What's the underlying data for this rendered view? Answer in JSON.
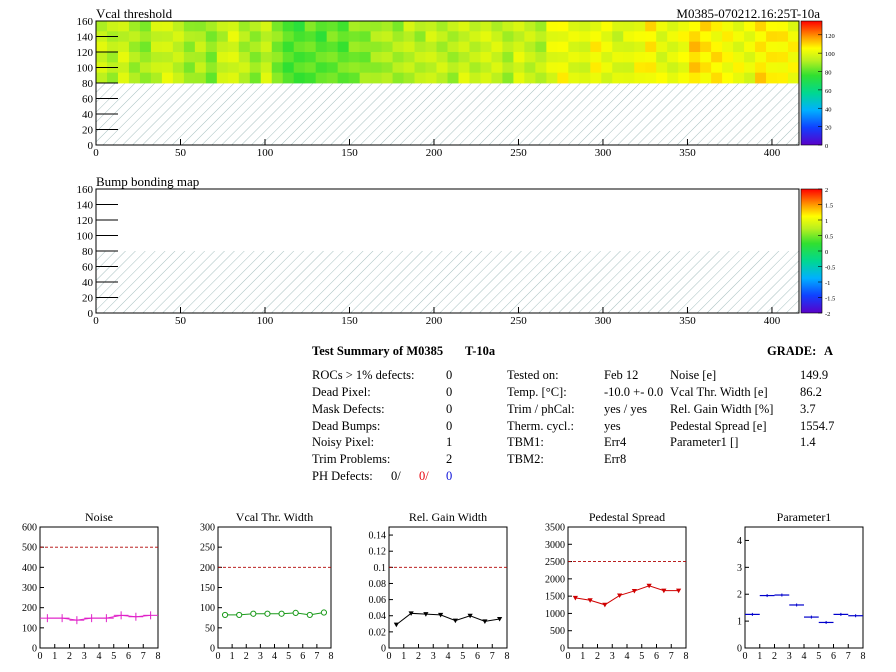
{
  "module_id": "M0385-070212.16:25T-10a",
  "maps": [
    {
      "title": "Vcal threshold",
      "x_ticks": [
        "0",
        "50",
        "100",
        "150",
        "200",
        "250",
        "300",
        "350",
        "400"
      ],
      "y_ticks": [
        "0",
        "20",
        "40",
        "60",
        "80",
        "100",
        "120",
        "140",
        "160"
      ],
      "xlim": [
        0,
        416
      ],
      "ylim": [
        0,
        160
      ],
      "filled_region": {
        "x": [
          0,
          416
        ],
        "y": [
          80,
          160
        ]
      },
      "hatched_region": {
        "x": [
          0,
          416
        ],
        "y": [
          0,
          80
        ]
      },
      "z_ticks": [
        "0",
        "20",
        "40",
        "60",
        "80",
        "100",
        "120"
      ],
      "zlim": [
        0,
        135
      ],
      "column_levels": [
        95,
        92,
        96,
        90,
        88,
        94,
        97,
        93,
        89,
        91,
        86,
        94,
        98,
        92,
        87,
        95,
        84,
        80,
        78,
        82,
        79,
        83,
        81,
        85,
        86,
        88,
        92,
        89,
        94,
        91,
        95,
        93,
        90,
        96,
        92,
        98,
        95,
        91,
        97,
        94,
        92,
        100,
        103,
        98,
        99,
        104,
        101,
        97,
        99,
        103,
        106,
        100,
        98,
        104,
        110,
        108,
        106,
        104,
        102,
        100,
        108,
        105,
        107,
        103
      ],
      "column_defects": [
        0,
        0,
        0,
        0,
        0,
        0,
        0,
        0,
        0,
        0,
        0,
        0,
        0,
        0,
        0,
        0,
        0,
        0,
        0,
        0,
        0,
        0,
        0,
        0,
        0,
        0,
        0,
        0,
        0,
        0,
        0,
        0,
        0,
        0,
        0,
        0,
        0,
        0,
        0,
        0,
        0,
        0,
        0,
        0,
        0,
        0,
        0,
        0,
        0,
        0,
        0,
        0,
        0,
        0,
        0,
        0,
        0,
        0,
        0,
        0,
        0,
        0,
        0,
        0
      ]
    },
    {
      "title": "Bump bonding map",
      "x_ticks": [
        "0",
        "50",
        "100",
        "150",
        "200",
        "250",
        "300",
        "350",
        "400"
      ],
      "y_ticks": [
        "0",
        "20",
        "40",
        "60",
        "80",
        "100",
        "120",
        "140",
        "160"
      ],
      "xlim": [
        0,
        416
      ],
      "ylim": [
        0,
        160
      ],
      "hatched_region": {
        "x": [
          0,
          416
        ],
        "y": [
          0,
          80
        ]
      },
      "z_ticks": [
        "-2",
        "-1.5",
        "-1",
        "-0.5",
        "0",
        "0.5",
        "1",
        "1.5",
        "2"
      ],
      "zlim": [
        -2,
        2
      ]
    }
  ],
  "summary": {
    "title": "Test Summary of M0385",
    "temp_tag": "T-10a",
    "grade_label": "GRADE:",
    "grade": "A",
    "defects": [
      {
        "label": "ROCs > 1% defects:",
        "value": "0"
      },
      {
        "label": "Dead Pixel:",
        "value": "0"
      },
      {
        "label": "Mask Defects:",
        "value": "0"
      },
      {
        "label": "Dead Bumps:",
        "value": "0"
      },
      {
        "label": "Noisy Pixel:",
        "value": "1"
      },
      {
        "label": "Trim Problems:",
        "value": "2"
      }
    ],
    "ph_defects_label": "PH Defects:",
    "ph_defects": [
      "0/",
      "0/",
      "0"
    ],
    "conditions": [
      {
        "label": "Tested on:",
        "value": "Feb 12"
      },
      {
        "label": "Temp. [°C]:",
        "value": "-10.0 +- 0.0"
      },
      {
        "label": "Trim / phCal:",
        "value": "yes / yes"
      },
      {
        "label": "Therm. cycl.:",
        "value": "yes"
      },
      {
        "label": "TBM1:",
        "value": "Err4"
      },
      {
        "label": "TBM2:",
        "value": "Err8"
      }
    ],
    "results": [
      {
        "label": "Noise [e]",
        "value": "149.9"
      },
      {
        "label": "Vcal Thr. Width [e]",
        "value": "86.2"
      },
      {
        "label": "Rel. Gain Width [%]",
        "value": "3.7"
      },
      {
        "label": "Pedestal Spread [e]",
        "value": "1554.7"
      },
      {
        "label": "Parameter1 []",
        "value": "1.4"
      }
    ]
  },
  "chart_data": [
    {
      "type": "line",
      "title": "Noise",
      "color": "#e020c8",
      "marker": "plus",
      "x": [
        0.5,
        1.5,
        2.5,
        3.5,
        4.5,
        5.5,
        6.5,
        7.5
      ],
      "values": [
        148,
        148,
        138,
        148,
        148,
        162,
        155,
        162
      ],
      "ylim": [
        0,
        600
      ],
      "y_ticks": [
        "0",
        "100",
        "200",
        "300",
        "400",
        "500",
        "600"
      ],
      "xlim": [
        0,
        8
      ],
      "x_ticks": [
        "0",
        "1",
        "2",
        "3",
        "4",
        "5",
        "6",
        "7",
        "8"
      ],
      "threshold": 500
    },
    {
      "type": "line",
      "title": "Vcal Thr. Width",
      "color": "#1a9a1a",
      "marker": "circle",
      "x": [
        0.5,
        1.5,
        2.5,
        3.5,
        4.5,
        5.5,
        6.5,
        7.5
      ],
      "values": [
        82,
        82,
        85,
        85,
        85,
        87,
        82,
        88
      ],
      "ylim": [
        0,
        300
      ],
      "y_ticks": [
        "0",
        "50",
        "100",
        "150",
        "200",
        "250",
        "300"
      ],
      "xlim": [
        0,
        8
      ],
      "x_ticks": [
        "0",
        "1",
        "2",
        "3",
        "4",
        "5",
        "6",
        "7",
        "8"
      ],
      "threshold": 200
    },
    {
      "type": "line",
      "title": "Rel. Gain Width",
      "color": "#000000",
      "marker": "triangle",
      "x": [
        0.5,
        1.5,
        2.5,
        3.5,
        4.5,
        5.5,
        6.5,
        7.5
      ],
      "values": [
        0.029,
        0.043,
        0.042,
        0.041,
        0.034,
        0.04,
        0.033,
        0.036
      ],
      "ylim": [
        0,
        0.15
      ],
      "y_ticks": [
        "0",
        "0.02",
        "0.04",
        "0.06",
        "0.08",
        "0.1",
        "0.12",
        "0.14"
      ],
      "xlim": [
        0,
        8
      ],
      "x_ticks": [
        "0",
        "1",
        "2",
        "3",
        "4",
        "5",
        "6",
        "7",
        "8"
      ],
      "threshold": 0.1
    },
    {
      "type": "line",
      "title": "Pedestal Spread",
      "color": "#d00000",
      "marker": "triangle",
      "x": [
        0.5,
        1.5,
        2.5,
        3.5,
        4.5,
        5.5,
        6.5,
        7.5
      ],
      "values": [
        1450,
        1380,
        1250,
        1520,
        1650,
        1800,
        1660,
        1660
      ],
      "ylim": [
        0,
        3500
      ],
      "y_ticks": [
        "0",
        "500",
        "1000",
        "1500",
        "2000",
        "2500",
        "3000",
        "3500"
      ],
      "xlim": [
        0,
        8
      ],
      "x_ticks": [
        "0",
        "1",
        "2",
        "3",
        "4",
        "5",
        "6",
        "7",
        "8"
      ],
      "threshold": 2500
    },
    {
      "type": "scatter",
      "title": "Parameter1",
      "color": "#0000cc",
      "marker": "hbar",
      "x": [
        0.5,
        1.5,
        2.5,
        3.5,
        4.5,
        5.5,
        6.5,
        7.5
      ],
      "values": [
        1.25,
        1.95,
        1.97,
        1.6,
        1.15,
        0.95,
        1.25,
        1.2
      ],
      "ylim": [
        0,
        4.5
      ],
      "y_ticks": [
        "0",
        "1",
        "2",
        "3",
        "4"
      ],
      "xlim": [
        0,
        8
      ],
      "x_ticks": [
        "0",
        "1",
        "2",
        "3",
        "4",
        "5",
        "6",
        "7",
        "8"
      ]
    }
  ]
}
